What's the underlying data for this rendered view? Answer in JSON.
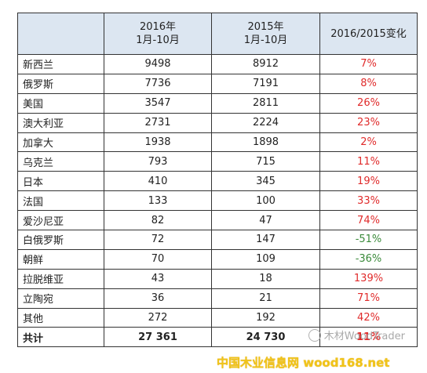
{
  "table": {
    "headers": [
      "",
      [
        "2016年",
        "1月-10月"
      ],
      [
        "2015年",
        "1月-10月"
      ],
      "2016/2015变化"
    ],
    "rows": [
      {
        "name": "新西兰",
        "y2016": "9498",
        "y2015": "8912",
        "change": "7%",
        "dir": "pos"
      },
      {
        "name": "俄罗斯",
        "y2016": "7736",
        "y2015": "7191",
        "change": "8%",
        "dir": "pos"
      },
      {
        "name": "美国",
        "y2016": "3547",
        "y2015": "2811",
        "change": "26%",
        "dir": "pos"
      },
      {
        "name": "澳大利亚",
        "y2016": "2731",
        "y2015": "2224",
        "change": "23%",
        "dir": "pos"
      },
      {
        "name": "加拿大",
        "y2016": "1938",
        "y2015": "1898",
        "change": "2%",
        "dir": "pos"
      },
      {
        "name": "乌克兰",
        "y2016": "793",
        "y2015": "715",
        "change": "11%",
        "dir": "pos"
      },
      {
        "name": "日本",
        "y2016": "410",
        "y2015": "345",
        "change": "19%",
        "dir": "pos"
      },
      {
        "name": "法国",
        "y2016": "133",
        "y2015": "100",
        "change": "33%",
        "dir": "pos"
      },
      {
        "name": "爱沙尼亚",
        "y2016": "82",
        "y2015": "47",
        "change": "74%",
        "dir": "pos"
      },
      {
        "name": "白俄罗斯",
        "y2016": "72",
        "y2015": "147",
        "change": "-51%",
        "dir": "neg"
      },
      {
        "name": "朝鲜",
        "y2016": "70",
        "y2015": "109",
        "change": "-36%",
        "dir": "neg"
      },
      {
        "name": "拉脱维亚",
        "y2016": "43",
        "y2015": "18",
        "change": "139%",
        "dir": "pos"
      },
      {
        "name": "立陶宛",
        "y2016": "36",
        "y2015": "21",
        "change": "71%",
        "dir": "pos"
      },
      {
        "name": "其他",
        "y2016": "272",
        "y2015": "192",
        "change": "42%",
        "dir": "pos"
      }
    ],
    "total": {
      "name": "共计",
      "y2016": "27 361",
      "y2015": "24 730",
      "change": "11%",
      "dir": "pos"
    }
  },
  "watermark": "木材WoodTrader",
  "banner": "中国木业信息网 wood168.net",
  "colors": {
    "header_bg": "#dce6f1",
    "positive": "#e02b2b",
    "negative": "#3a8a3a",
    "banner": "#f0c419"
  }
}
